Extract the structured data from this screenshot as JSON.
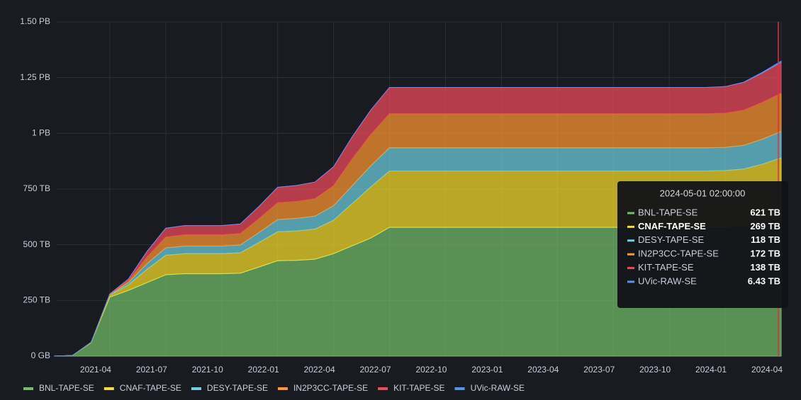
{
  "chart_data": {
    "type": "stacked-area",
    "x": [
      "2021-01",
      "2021-02",
      "2021-03",
      "2021-04",
      "2021-05",
      "2021-06",
      "2021-07",
      "2021-08",
      "2021-09",
      "2021-10",
      "2021-11",
      "2021-12",
      "2022-01",
      "2022-02",
      "2022-03",
      "2022-04",
      "2022-05",
      "2022-06",
      "2022-07",
      "2022-08",
      "2022-09",
      "2022-10",
      "2022-11",
      "2022-12",
      "2023-01",
      "2023-02",
      "2023-03",
      "2023-04",
      "2023-05",
      "2023-06",
      "2023-07",
      "2023-08",
      "2023-09",
      "2023-10",
      "2023-11",
      "2023-12",
      "2024-01",
      "2024-02",
      "2024-03",
      "2024-04"
    ],
    "xlim": [
      "2021-01",
      "2024-04"
    ],
    "xticks": [
      "2021-04",
      "2021-07",
      "2021-10",
      "2022-01",
      "2022-04",
      "2022-07",
      "2022-10",
      "2023-01",
      "2023-04",
      "2023-07",
      "2023-10",
      "2024-01",
      "2024-04"
    ],
    "ylim": [
      0,
      1500
    ],
    "yticks": [
      {
        "value": 0,
        "label": "0 GB"
      },
      {
        "value": 250,
        "label": "250 TB"
      },
      {
        "value": 500,
        "label": "500 TB"
      },
      {
        "value": 750,
        "label": "750 TB"
      },
      {
        "value": 1000,
        "label": "1 PB"
      },
      {
        "value": 1250,
        "label": "1.25 PB"
      },
      {
        "value": 1500,
        "label": "1.50 PB"
      }
    ],
    "grid": true,
    "series": [
      {
        "name": "BNL-TAPE-SE",
        "color": "#73bf69",
        "values": [
          0,
          3,
          60,
          265,
          295,
          330,
          365,
          370,
          370,
          370,
          372,
          400,
          428,
          430,
          435,
          460,
          495,
          530,
          578,
          578,
          578,
          578,
          578,
          578,
          578,
          578,
          578,
          578,
          578,
          578,
          578,
          578,
          578,
          578,
          578,
          578,
          580,
          585,
          600,
          621
        ]
      },
      {
        "name": "CNAF-TAPE-SE",
        "color": "#fade2a",
        "values": [
          0,
          0,
          2,
          8,
          25,
          60,
          88,
          90,
          90,
          90,
          92,
          110,
          130,
          132,
          135,
          150,
          190,
          230,
          253,
          253,
          253,
          253,
          253,
          253,
          253,
          253,
          253,
          253,
          253,
          253,
          253,
          253,
          253,
          253,
          253,
          253,
          253,
          255,
          262,
          269
        ]
      },
      {
        "name": "DESY-TAPE-SE",
        "color": "#6ed0e0",
        "values": [
          0,
          0,
          0,
          2,
          10,
          25,
          33,
          34,
          34,
          34,
          35,
          45,
          55,
          56,
          58,
          65,
          80,
          95,
          104,
          104,
          104,
          104,
          104,
          104,
          104,
          104,
          104,
          104,
          104,
          104,
          104,
          104,
          104,
          104,
          104,
          104,
          104,
          106,
          112,
          118
        ]
      },
      {
        "name": "IN2P3CC-TAPE-SE",
        "color": "#ff9830",
        "values": [
          0,
          0,
          0,
          2,
          8,
          30,
          48,
          50,
          50,
          50,
          51,
          62,
          75,
          76,
          78,
          90,
          120,
          140,
          153,
          153,
          153,
          153,
          153,
          153,
          153,
          153,
          153,
          153,
          153,
          153,
          153,
          153,
          153,
          153,
          153,
          153,
          153,
          158,
          165,
          172
        ]
      },
      {
        "name": "KIT-TAPE-SE",
        "color": "#f2495c",
        "values": [
          0,
          0,
          0,
          2,
          8,
          25,
          40,
          42,
          42,
          42,
          43,
          55,
          70,
          72,
          75,
          85,
          100,
          110,
          118,
          118,
          118,
          118,
          118,
          118,
          118,
          118,
          118,
          118,
          118,
          118,
          118,
          118,
          118,
          118,
          118,
          118,
          120,
          125,
          132,
          138
        ]
      },
      {
        "name": "UVic-RAW-SE",
        "color": "#5794f2",
        "values": [
          0,
          0,
          0,
          0,
          0,
          0,
          0,
          0,
          0,
          0,
          0,
          0,
          0,
          0,
          0,
          0,
          0,
          0,
          0,
          0,
          0,
          0,
          0,
          0,
          0,
          0,
          0,
          0,
          0,
          0,
          0,
          0,
          0,
          0,
          0,
          0,
          0,
          1,
          3,
          6.43
        ]
      }
    ],
    "tooltip": {
      "time": "2024-05-01 02:00:00",
      "values": [
        621,
        269,
        118,
        172,
        138,
        6.43
      ],
      "value_labels": [
        "621 TB",
        "269 TB",
        "118 TB",
        "172 TB",
        "138 TB",
        "6.43 TB"
      ]
    }
  }
}
